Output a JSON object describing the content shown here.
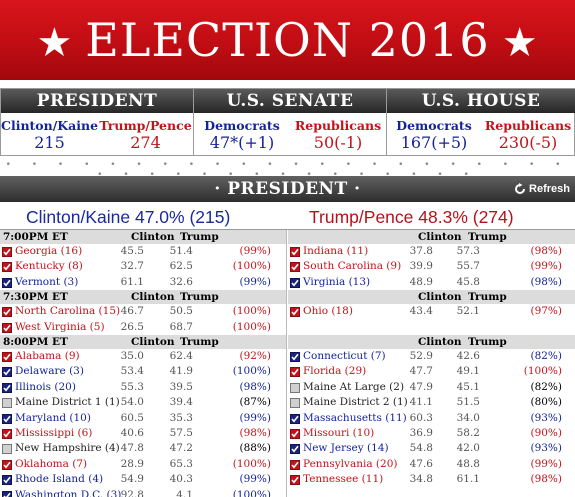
{
  "banner": {
    "star": "★",
    "title": "ELECTION 2016"
  },
  "summary": {
    "president": {
      "header": "PRESIDENT",
      "dem": {
        "name": "Clinton/Kaine",
        "value": "215"
      },
      "rep": {
        "name": "Trump/Pence",
        "value": "274"
      }
    },
    "senate": {
      "header": "U.S. SENATE",
      "dem": {
        "name": "Democrats",
        "value": "47*(+1)"
      },
      "rep": {
        "name": "Republicans",
        "value": "50(-1)"
      }
    },
    "house": {
      "header": "U.S. HOUSE",
      "dem": {
        "name": "Democrats",
        "value": "167(+5)"
      },
      "rep": {
        "name": "Republicans",
        "value": "230(-5)"
      }
    }
  },
  "separator": "• • • • • • • • • • • • • • • • • • • • • • • • • • • • • • • • • • • • •",
  "president_bar": {
    "title": "· PRESIDENT ·",
    "refresh": "Refresh"
  },
  "totals": {
    "clinton": "Clinton/Kaine 47.0% (215)",
    "trump": "Trump/Pence 48.3% (274)"
  },
  "columns": {
    "c1": "Clinton",
    "c2": "Trump"
  },
  "colors": {
    "dem": "#14239a",
    "rep": "#c4121a",
    "undecided": "#d0d0d0"
  },
  "groups": [
    {
      "time": "7:00PM ET",
      "left": [
        {
          "state": "Georgia (16)",
          "winner": "rep",
          "clinton": "45.5",
          "trump": "51.4",
          "pct": "(99%)"
        },
        {
          "state": "Kentucky (8)",
          "winner": "rep",
          "clinton": "32.7",
          "trump": "62.5",
          "pct": "(100%)"
        },
        {
          "state": "Vermont (3)",
          "winner": "dem",
          "clinton": "61.1",
          "trump": "32.6",
          "pct": "(99%)"
        }
      ],
      "right": [
        {
          "state": "Indiana (11)",
          "winner": "rep",
          "clinton": "37.8",
          "trump": "57.3",
          "pct": "(98%)"
        },
        {
          "state": "South Carolina (9)",
          "winner": "rep",
          "clinton": "39.9",
          "trump": "55.7",
          "pct": "(99%)"
        },
        {
          "state": "Virginia (13)",
          "winner": "dem",
          "clinton": "48.9",
          "trump": "45.8",
          "pct": "(98%)"
        }
      ]
    },
    {
      "time": "7:30PM ET",
      "left": [
        {
          "state": "North Carolina (15)",
          "winner": "rep",
          "clinton": "46.7",
          "trump": "50.5",
          "pct": "(100%)"
        },
        {
          "state": "West Virginia (5)",
          "winner": "rep",
          "clinton": "26.5",
          "trump": "68.7",
          "pct": "(100%)"
        }
      ],
      "right": [
        {
          "state": "Ohio (18)",
          "winner": "rep",
          "clinton": "43.4",
          "trump": "52.1",
          "pct": "(97%)"
        }
      ]
    },
    {
      "time": "8:00PM ET",
      "left": [
        {
          "state": "Alabama (9)",
          "winner": "rep",
          "clinton": "35.0",
          "trump": "62.4",
          "pct": "(92%)"
        },
        {
          "state": "Delaware (3)",
          "winner": "dem",
          "clinton": "53.4",
          "trump": "41.9",
          "pct": "(100%)"
        },
        {
          "state": "Illinois (20)",
          "winner": "dem",
          "clinton": "55.3",
          "trump": "39.5",
          "pct": "(98%)"
        },
        {
          "state": "Maine District 1 (1)",
          "winner": "none",
          "clinton": "54.0",
          "trump": "39.4",
          "pct": "(87%)"
        },
        {
          "state": "Maryland (10)",
          "winner": "dem",
          "clinton": "60.5",
          "trump": "35.3",
          "pct": "(99%)"
        },
        {
          "state": "Mississippi (6)",
          "winner": "rep",
          "clinton": "40.6",
          "trump": "57.5",
          "pct": "(98%)"
        },
        {
          "state": "New Hampshire (4)",
          "winner": "none",
          "clinton": "47.8",
          "trump": "47.2",
          "pct": "(88%)"
        },
        {
          "state": "Oklahoma (7)",
          "winner": "rep",
          "clinton": "28.9",
          "trump": "65.3",
          "pct": "(100%)"
        },
        {
          "state": "Rhode Island (4)",
          "winner": "dem",
          "clinton": "54.9",
          "trump": "40.3",
          "pct": "(99%)"
        },
        {
          "state": "Washington D.C. (3)",
          "winner": "dem",
          "clinton": "92.8",
          "trump": "4.1",
          "pct": "(100%)"
        }
      ],
      "right": [
        {
          "state": "Connecticut (7)",
          "winner": "dem",
          "clinton": "52.9",
          "trump": "42.6",
          "pct": "(82%)"
        },
        {
          "state": "Florida (29)",
          "winner": "rep",
          "clinton": "47.7",
          "trump": "49.1",
          "pct": "(100%)"
        },
        {
          "state": "Maine At Large (2)",
          "winner": "none",
          "clinton": "47.9",
          "trump": "45.1",
          "pct": "(82%)"
        },
        {
          "state": "Maine District 2 (1)",
          "winner": "none",
          "clinton": "41.1",
          "trump": "51.5",
          "pct": "(80%)"
        },
        {
          "state": "Massachusetts (11)",
          "winner": "dem",
          "clinton": "60.3",
          "trump": "34.0",
          "pct": "(93%)"
        },
        {
          "state": "Missouri (10)",
          "winner": "rep",
          "clinton": "36.9",
          "trump": "58.2",
          "pct": "(90%)"
        },
        {
          "state": "New Jersey (14)",
          "winner": "dem",
          "clinton": "54.8",
          "trump": "42.0",
          "pct": "(93%)"
        },
        {
          "state": "Pennsylvania (20)",
          "winner": "rep",
          "clinton": "47.6",
          "trump": "48.8",
          "pct": "(99%)"
        },
        {
          "state": "Tennessee (11)",
          "winner": "rep",
          "clinton": "34.8",
          "trump": "61.1",
          "pct": "(98%)"
        }
      ]
    }
  ]
}
